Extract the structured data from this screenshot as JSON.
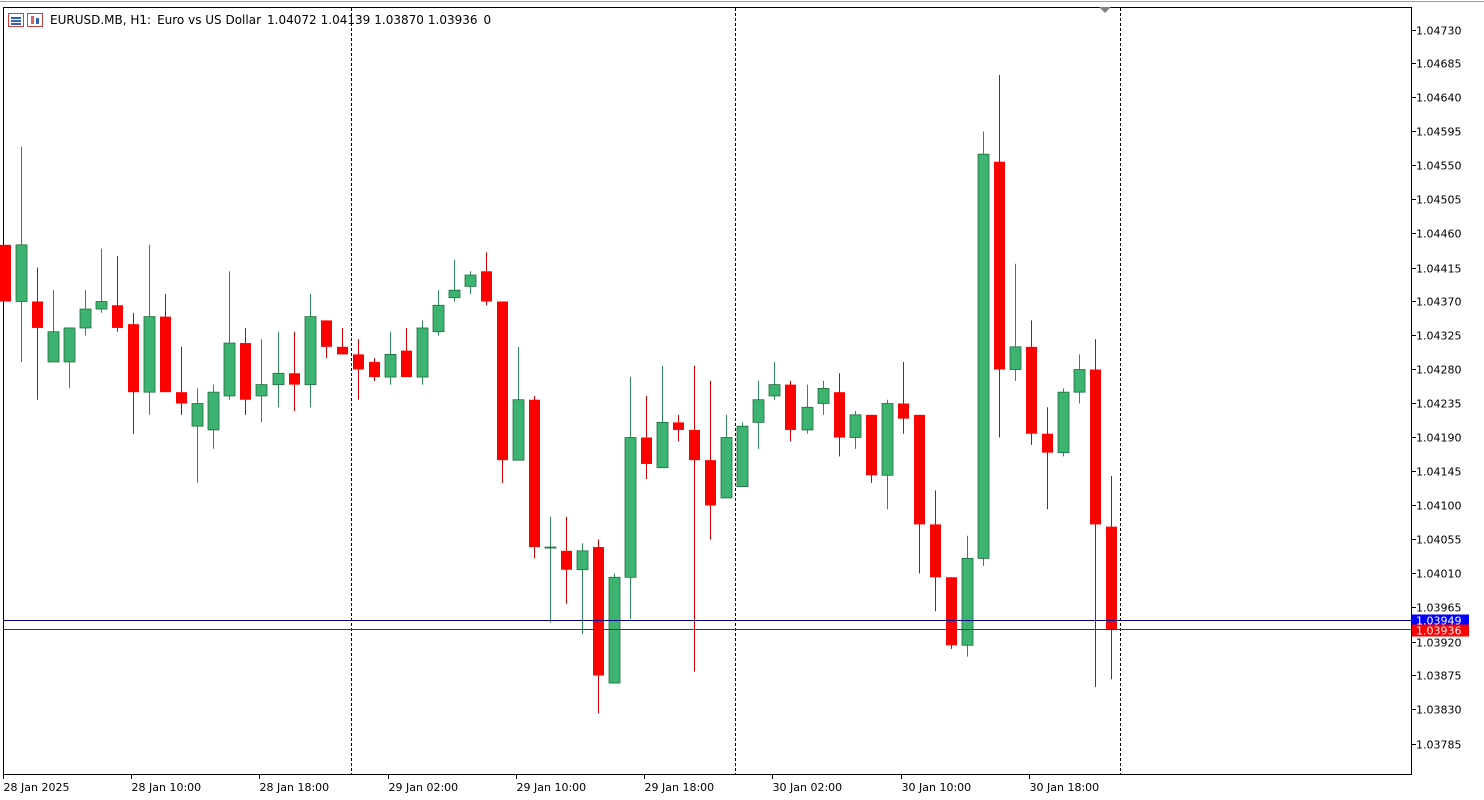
{
  "header": {
    "symbol": "EURUSD.MB, H1:",
    "description": "Euro vs US Dollar",
    "open": "1.04072",
    "high": "1.04139",
    "low": "1.03870",
    "close": "1.03936",
    "volume": "0",
    "icons": [
      "ohlc-list-icon",
      "candle-chart-icon"
    ]
  },
  "chart_data": {
    "type": "candlestick",
    "colors": {
      "bull": "#3cb371",
      "bear": "#ff0000",
      "wick_bull": "#2e8b57",
      "wick_bear": "#d00000",
      "grid_separator": "#000000",
      "ask_line": "#000080",
      "bid_line": "#c00000",
      "ask_label_bg": "#0000ff",
      "bid_label_bg": "#ff0000"
    },
    "ylim": [
      1.0375,
      1.0476
    ],
    "y_ticks": [
      "1.04730",
      "1.04685",
      "1.04640",
      "1.04595",
      "1.04550",
      "1.04505",
      "1.04460",
      "1.04415",
      "1.04370",
      "1.04325",
      "1.04280",
      "1.04235",
      "1.04190",
      "1.04145",
      "1.04100",
      "1.04055",
      "1.04010",
      "1.03965",
      "1.03920",
      "1.03875",
      "1.03830",
      "1.03785"
    ],
    "x_ticks": [
      {
        "label": "28 Jan 2025",
        "bar": 0
      },
      {
        "label": "28 Jan 10:00",
        "bar": 8
      },
      {
        "label": "28 Jan 18:00",
        "bar": 16
      },
      {
        "label": "29 Jan 02:00",
        "bar": 24
      },
      {
        "label": "29 Jan 10:00",
        "bar": 32
      },
      {
        "label": "29 Jan 18:00",
        "bar": 40
      },
      {
        "label": "30 Jan 02:00",
        "bar": 48
      },
      {
        "label": "30 Jan 10:00",
        "bar": 56
      },
      {
        "label": "30 Jan 18:00",
        "bar": 64
      }
    ],
    "day_separators_bar": [
      22,
      46,
      70
    ],
    "ask": "1.03949",
    "bid": "1.03936",
    "candles": [
      [
        1.04445,
        1.04445,
        1.0437,
        1.0437
      ],
      [
        1.0437,
        1.04575,
        1.0429,
        1.04445
      ],
      [
        1.0437,
        1.04415,
        1.0424,
        1.04335
      ],
      [
        1.0429,
        1.04385,
        1.0429,
        1.0433
      ],
      [
        1.0429,
        1.04335,
        1.04255,
        1.04335
      ],
      [
        1.04335,
        1.04385,
        1.04325,
        1.0436
      ],
      [
        1.0436,
        1.0444,
        1.04355,
        1.0437
      ],
      [
        1.04365,
        1.0443,
        1.0433,
        1.04335
      ],
      [
        1.0434,
        1.04355,
        1.04195,
        1.0425
      ],
      [
        1.0425,
        1.04445,
        1.0422,
        1.0435
      ],
      [
        1.0435,
        1.0438,
        1.0425,
        1.0425
      ],
      [
        1.0425,
        1.0431,
        1.0422,
        1.04235
      ],
      [
        1.04205,
        1.04255,
        1.0413,
        1.04235
      ],
      [
        1.042,
        1.0426,
        1.04175,
        1.0425
      ],
      [
        1.04245,
        1.0441,
        1.0424,
        1.04315
      ],
      [
        1.04315,
        1.04335,
        1.0422,
        1.0424
      ],
      [
        1.04245,
        1.0432,
        1.0421,
        1.0426
      ],
      [
        1.0426,
        1.0433,
        1.0423,
        1.04275
      ],
      [
        1.04275,
        1.0433,
        1.04225,
        1.0426
      ],
      [
        1.0426,
        1.0438,
        1.0423,
        1.0435
      ],
      [
        1.04345,
        1.04345,
        1.04295,
        1.0431
      ],
      [
        1.0431,
        1.04335,
        1.043,
        1.043
      ],
      [
        1.043,
        1.0432,
        1.0424,
        1.0428
      ],
      [
        1.0429,
        1.04295,
        1.04265,
        1.0427
      ],
      [
        1.0427,
        1.0433,
        1.0426,
        1.043
      ],
      [
        1.04305,
        1.04335,
        1.0427,
        1.0427
      ],
      [
        1.0427,
        1.04345,
        1.0426,
        1.04335
      ],
      [
        1.0433,
        1.04385,
        1.04325,
        1.04365
      ],
      [
        1.04375,
        1.04425,
        1.0437,
        1.04385
      ],
      [
        1.0439,
        1.0441,
        1.0438,
        1.04405
      ],
      [
        1.0441,
        1.04435,
        1.04365,
        1.0437
      ],
      [
        1.0437,
        1.0437,
        1.0413,
        1.0416
      ],
      [
        1.0416,
        1.0431,
        1.0416,
        1.0424
      ],
      [
        1.0424,
        1.04245,
        1.0403,
        1.04045
      ],
      [
        1.04045,
        1.04085,
        1.03945,
        1.04045
      ],
      [
        1.0404,
        1.04085,
        1.0397,
        1.04015
      ],
      [
        1.04015,
        1.0405,
        1.0393,
        1.0404
      ],
      [
        1.04045,
        1.04055,
        1.03825,
        1.03875
      ],
      [
        1.03865,
        1.0401,
        1.03865,
        1.04005
      ],
      [
        1.04005,
        1.0427,
        1.0395,
        1.0419
      ],
      [
        1.0419,
        1.04245,
        1.04135,
        1.04155
      ],
      [
        1.0415,
        1.04285,
        1.0415,
        1.0421
      ],
      [
        1.0421,
        1.0422,
        1.04185,
        1.042
      ],
      [
        1.042,
        1.04285,
        1.0388,
        1.0416
      ],
      [
        1.0416,
        1.04265,
        1.04055,
        1.041
      ],
      [
        1.0411,
        1.0422,
        1.0411,
        1.0419
      ],
      [
        1.04125,
        1.0421,
        1.04125,
        1.04205
      ],
      [
        1.0421,
        1.04265,
        1.04175,
        1.0424
      ],
      [
        1.04245,
        1.0429,
        1.0424,
        1.0426
      ],
      [
        1.0426,
        1.04265,
        1.04185,
        1.042
      ],
      [
        1.042,
        1.0426,
        1.04195,
        1.0423
      ],
      [
        1.04235,
        1.04265,
        1.0422,
        1.04255
      ],
      [
        1.0425,
        1.04275,
        1.04165,
        1.0419
      ],
      [
        1.0419,
        1.04225,
        1.04175,
        1.0422
      ],
      [
        1.0422,
        1.0422,
        1.0413,
        1.0414
      ],
      [
        1.0414,
        1.0424,
        1.04095,
        1.04235
      ],
      [
        1.04235,
        1.0429,
        1.04195,
        1.04215
      ],
      [
        1.0422,
        1.0422,
        1.0401,
        1.04075
      ],
      [
        1.04075,
        1.0412,
        1.0396,
        1.04005
      ],
      [
        1.04005,
        1.04005,
        1.0391,
        1.03915
      ],
      [
        1.03915,
        1.0406,
        1.039,
        1.0403
      ],
      [
        1.0403,
        1.04595,
        1.0402,
        1.04565
      ],
      [
        1.04555,
        1.0467,
        1.0419,
        1.0428
      ],
      [
        1.0428,
        1.0442,
        1.04265,
        1.0431
      ],
      [
        1.0431,
        1.04345,
        1.0418,
        1.04195
      ],
      [
        1.04195,
        1.0423,
        1.04095,
        1.0417
      ],
      [
        1.0417,
        1.04255,
        1.04165,
        1.0425
      ],
      [
        1.0425,
        1.043,
        1.04235,
        1.0428
      ],
      [
        1.0428,
        1.0432,
        1.0386,
        1.04075
      ],
      [
        1.04072,
        1.04139,
        1.0387,
        1.03936
      ]
    ]
  }
}
